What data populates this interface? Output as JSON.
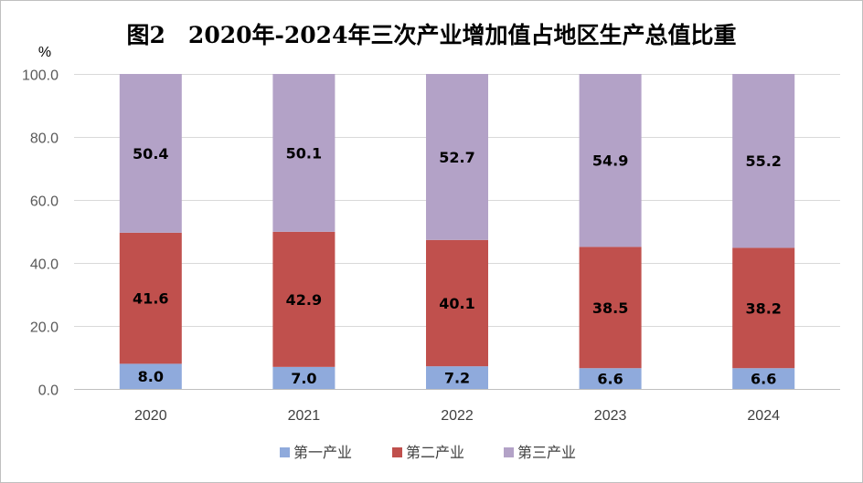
{
  "chart_data": {
    "type": "bar",
    "stacked": true,
    "title": "图2　2020年-2024年三次产业增加值占地区生产总值比重",
    "ylabel": "%",
    "xlabel": "",
    "ylim": [
      0,
      100
    ],
    "yticks": [
      0,
      20,
      40,
      60,
      80,
      100
    ],
    "ytick_labels": [
      "0.0",
      "20.0",
      "40.0",
      "60.0",
      "80.0",
      "100.0"
    ],
    "grid": true,
    "legend_position": "bottom",
    "categories": [
      "2020",
      "2021",
      "2022",
      "2023",
      "2024"
    ],
    "series": [
      {
        "name": "第一产业",
        "color": "#8faadc",
        "values": [
          8.0,
          7.0,
          7.2,
          6.6,
          6.6
        ],
        "labels": [
          "8.0",
          "7.0",
          "7.2",
          "6.6",
          "6.6"
        ]
      },
      {
        "name": "第二产业",
        "color": "#c0504d",
        "values": [
          41.6,
          42.9,
          40.1,
          38.5,
          38.2
        ],
        "labels": [
          "41.6",
          "42.9",
          "40.1",
          "38.5",
          "38.2"
        ]
      },
      {
        "name": "第三产业",
        "color": "#b3a2c7",
        "values": [
          50.4,
          50.1,
          52.7,
          54.9,
          55.2
        ],
        "labels": [
          "50.4",
          "50.1",
          "52.7",
          "54.9",
          "55.2"
        ]
      }
    ]
  }
}
